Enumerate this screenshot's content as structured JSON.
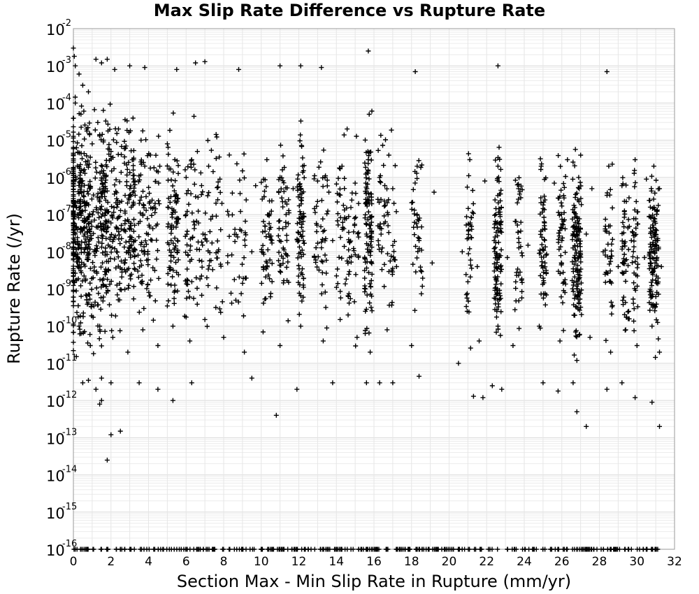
{
  "chart_data": {
    "type": "scatter",
    "title": "Max Slip Rate Difference vs Rupture Rate",
    "xlabel": "Section Max - Min Slip Rate in Rupture (mm/yr)",
    "ylabel": "Rupture Rate (/yr)",
    "x_scale": "linear",
    "y_scale": "log",
    "xlim": [
      0,
      32
    ],
    "ylim": [
      1e-16,
      0.01
    ],
    "x_ticks": [
      "0",
      "2",
      "4",
      "6",
      "8",
      "10",
      "12",
      "14",
      "16",
      "18",
      "20",
      "22",
      "24",
      "26",
      "28",
      "30",
      "32"
    ],
    "y_ticks": [
      {
        "base": "10",
        "exp": "-16"
      },
      {
        "base": "10",
        "exp": "-15"
      },
      {
        "base": "10",
        "exp": "-14"
      },
      {
        "base": "10",
        "exp": "-13"
      },
      {
        "base": "10",
        "exp": "-12"
      },
      {
        "base": "10",
        "exp": "-11"
      },
      {
        "base": "10",
        "exp": "-10"
      },
      {
        "base": "10",
        "exp": "-9"
      },
      {
        "base": "10",
        "exp": "-8"
      },
      {
        "base": "10",
        "exp": "-7"
      },
      {
        "base": "10",
        "exp": "-6"
      },
      {
        "base": "10",
        "exp": "-5"
      },
      {
        "base": "10",
        "exp": "-4"
      },
      {
        "base": "10",
        "exp": "-3"
      },
      {
        "base": "10",
        "exp": "-2"
      }
    ],
    "grid": true,
    "marker": "plus",
    "marker_color": "#000000",
    "series": [
      {
        "points": [
          [
            0.0,
            0.003
          ],
          [
            0.05,
            0.0018
          ],
          [
            0.1,
            0.001
          ],
          [
            0.3,
            0.0006
          ],
          [
            0.5,
            0.0003
          ],
          [
            0.8,
            0.0002
          ],
          [
            1.2,
            0.0015
          ],
          [
            1.5,
            0.0012
          ],
          [
            1.8,
            0.0015
          ],
          [
            2.2,
            0.0008
          ],
          [
            3.0,
            0.001
          ],
          [
            3.8,
            0.0009
          ],
          [
            5.5,
            0.0008
          ],
          [
            6.5,
            0.0012
          ],
          [
            7.0,
            0.0013
          ],
          [
            8.8,
            0.0008
          ],
          [
            11.0,
            0.001
          ],
          [
            12.1,
            0.001
          ],
          [
            13.2,
            0.0009
          ],
          [
            15.7,
            0.0025
          ],
          [
            18.2,
            0.0007
          ],
          [
            22.6,
            0.001
          ],
          [
            28.4,
            0.0007
          ],
          [
            0.1,
            0.0001
          ],
          [
            0.4,
            5e-05
          ],
          [
            0.7,
            2e-05
          ],
          [
            1.0,
            8e-06
          ],
          [
            1.3,
            3e-05
          ],
          [
            1.6,
            1e-05
          ],
          [
            2.0,
            5e-06
          ],
          [
            2.4,
            2e-05
          ],
          [
            2.8,
            7e-06
          ],
          [
            3.2,
            3e-06
          ],
          [
            3.6,
            1e-05
          ],
          [
            4.1,
            4e-06
          ],
          [
            4.6,
            2e-06
          ],
          [
            5.0,
            8e-06
          ],
          [
            5.4,
            3e-06
          ],
          [
            6.0,
            1e-06
          ],
          [
            6.6,
            5e-06
          ],
          [
            7.2,
            2e-06
          ],
          [
            7.8,
            9e-07
          ],
          [
            8.3,
            4e-06
          ],
          [
            9.0,
            1.5e-06
          ],
          [
            9.7,
            6e-07
          ],
          [
            10.3,
            3e-06
          ],
          [
            11.0,
            1e-06
          ],
          [
            11.7,
            5e-07
          ],
          [
            12.2,
            2e-06
          ],
          [
            13.0,
            8e-07
          ],
          [
            13.6,
            4e-07
          ],
          [
            14.3,
            2e-06
          ],
          [
            15.0,
            7e-07
          ],
          [
            15.7,
            3e-06
          ],
          [
            16.3,
            1e-06
          ],
          [
            17.0,
            5e-07
          ],
          [
            18.3,
            2e-06
          ],
          [
            19.2,
            4e-07
          ],
          [
            21.1,
            3e-06
          ],
          [
            21.9,
            8e-07
          ],
          [
            22.6,
            2e-06
          ],
          [
            23.7,
            5e-07
          ],
          [
            24.9,
            2e-06
          ],
          [
            25.6,
            7e-07
          ],
          [
            26.3,
            3e-06
          ],
          [
            26.9,
            1e-06
          ],
          [
            27.6,
            5e-07
          ],
          [
            28.5,
            2e-06
          ],
          [
            29.2,
            6e-07
          ],
          [
            29.9,
            3e-06
          ],
          [
            30.5,
            9e-07
          ],
          [
            30.9,
            2e-06
          ],
          [
            31.2,
            5e-07
          ],
          [
            0.2,
            1e-07
          ],
          [
            0.6,
            3e-08
          ],
          [
            1.1,
            1e-08
          ],
          [
            1.7,
            5e-08
          ],
          [
            2.3,
            1e-08
          ],
          [
            3.0,
            4e-08
          ],
          [
            3.8,
            1e-08
          ],
          [
            4.4,
            5e-08
          ],
          [
            5.2,
            2e-08
          ],
          [
            6.1,
            8e-09
          ],
          [
            6.9,
            3e-08
          ],
          [
            7.7,
            1e-08
          ],
          [
            8.6,
            4e-08
          ],
          [
            9.5,
            1e-08
          ],
          [
            10.4,
            3e-08
          ],
          [
            11.3,
            9e-09
          ],
          [
            12.0,
            2e-08
          ],
          [
            12.9,
            6e-09
          ],
          [
            13.8,
            2e-08
          ],
          [
            14.7,
            7e-09
          ],
          [
            15.6,
            3e-08
          ],
          [
            16.4,
            1e-08
          ],
          [
            17.2,
            4e-09
          ],
          [
            18.4,
            2e-08
          ],
          [
            19.1,
            5e-09
          ],
          [
            20.7,
            1e-08
          ],
          [
            21.5,
            4e-09
          ],
          [
            22.4,
            2e-08
          ],
          [
            23.1,
            7e-09
          ],
          [
            24.2,
            1.5e-08
          ],
          [
            25.1,
            5e-09
          ],
          [
            26.0,
            2e-08
          ],
          [
            26.7,
            8e-09
          ],
          [
            27.3,
            3e-08
          ],
          [
            28.2,
            1e-08
          ],
          [
            29.0,
            4e-09
          ],
          [
            29.7,
            2e-08
          ],
          [
            30.4,
            7e-09
          ],
          [
            31.0,
            1.5e-08
          ],
          [
            31.3,
            4e-09
          ],
          [
            0.3,
            1e-10
          ],
          [
            0.9,
            3e-11
          ],
          [
            1.4,
            1e-10
          ],
          [
            2.1,
            5e-11
          ],
          [
            2.9,
            2e-11
          ],
          [
            3.7,
            8e-11
          ],
          [
            4.5,
            3e-11
          ],
          [
            5.3,
            1e-10
          ],
          [
            6.2,
            4e-11
          ],
          [
            7.0,
            1.5e-10
          ],
          [
            8.0,
            5e-11
          ],
          [
            9.1,
            2e-11
          ],
          [
            10.1,
            7e-11
          ],
          [
            11.0,
            3e-11
          ],
          [
            12.1,
            1e-10
          ],
          [
            13.3,
            4e-11
          ],
          [
            14.2,
            1.5e-10
          ],
          [
            15.1,
            5e-11
          ],
          [
            15.8,
            2e-11
          ],
          [
            16.7,
            8e-11
          ],
          [
            18.0,
            3e-11
          ],
          [
            20.5,
            1e-11
          ],
          [
            21.6,
            4e-11
          ],
          [
            22.6,
            1e-10
          ],
          [
            23.4,
            3e-11
          ],
          [
            24.8,
            1e-10
          ],
          [
            25.9,
            4e-11
          ],
          [
            26.8,
            1.2e-11
          ],
          [
            27.5,
            5e-11
          ],
          [
            28.6,
            2e-11
          ],
          [
            29.4,
            8e-11
          ],
          [
            30.0,
            3e-11
          ],
          [
            30.8,
            1e-10
          ],
          [
            31.2,
            2e-11
          ],
          [
            0.5,
            3e-12
          ],
          [
            0.8,
            3.5e-12
          ],
          [
            1.2,
            2e-12
          ],
          [
            1.5,
            4e-12
          ],
          [
            2.0,
            3e-12
          ],
          [
            3.5,
            3e-12
          ],
          [
            4.5,
            2e-12
          ],
          [
            5.3,
            1e-12
          ],
          [
            6.3,
            3e-12
          ],
          [
            9.5,
            4e-12
          ],
          [
            10.8,
            4e-13
          ],
          [
            11.9,
            2e-12
          ],
          [
            13.8,
            3e-12
          ],
          [
            15.6,
            3e-12
          ],
          [
            16.3,
            3e-12
          ],
          [
            17.0,
            3e-12
          ],
          [
            18.4,
            4.5e-12
          ],
          [
            21.3,
            1.3e-12
          ],
          [
            21.8,
            1.2e-12
          ],
          [
            22.3,
            2.5e-12
          ],
          [
            22.8,
            2e-12
          ],
          [
            25.0,
            3e-12
          ],
          [
            25.8,
            1.8e-12
          ],
          [
            26.6,
            3e-12
          ],
          [
            26.8,
            5e-13
          ],
          [
            27.3,
            2e-13
          ],
          [
            28.4,
            2e-12
          ],
          [
            29.2,
            3e-12
          ],
          [
            29.9,
            1.2e-12
          ],
          [
            30.8,
            9e-13
          ],
          [
            31.2,
            2e-13
          ],
          [
            1.4,
            8e-13
          ],
          [
            1.5,
            1e-12
          ],
          [
            2.0,
            1.2e-13
          ],
          [
            2.5,
            1.5e-13
          ],
          [
            1.8,
            2.5e-14
          ]
        ],
        "columns": [
          {
            "x": 0.1,
            "spread": 0.8,
            "ymin": -11.5,
            "ymax": -3,
            "n": 260
          },
          {
            "x": 1.0,
            "spread": 0.9,
            "ymin": -11.3,
            "ymax": -3.3,
            "n": 200
          },
          {
            "x": 2.0,
            "spread": 0.6,
            "ymin": -11.2,
            "ymax": -3.5,
            "n": 150
          },
          {
            "x": 3.0,
            "spread": 0.3,
            "ymin": -11.0,
            "ymax": -3.5,
            "n": 110
          },
          {
            "x": 4.0,
            "spread": 0.6,
            "ymin": -11.0,
            "ymax": -3.7,
            "n": 100
          },
          {
            "x": 5.3,
            "spread": 0.3,
            "ymin": -11.0,
            "ymax": -3.8,
            "n": 90
          },
          {
            "x": 6.4,
            "spread": 0.5,
            "ymin": -11.0,
            "ymax": -3.8,
            "n": 70
          },
          {
            "x": 7.5,
            "spread": 0.5,
            "ymin": -11.0,
            "ymax": -4.0,
            "n": 50
          },
          {
            "x": 8.7,
            "spread": 0.5,
            "ymin": -11.0,
            "ymax": -4.0,
            "n": 40
          },
          {
            "x": 10.3,
            "spread": 0.3,
            "ymin": -10.8,
            "ymax": -4.2,
            "n": 55
          },
          {
            "x": 11.2,
            "spread": 0.3,
            "ymin": -10.8,
            "ymax": -4.2,
            "n": 55
          },
          {
            "x": 12.1,
            "spread": 0.2,
            "ymin": -11.0,
            "ymax": -3.5,
            "n": 80
          },
          {
            "x": 13.2,
            "spread": 0.4,
            "ymin": -10.8,
            "ymax": -4.0,
            "n": 50
          },
          {
            "x": 14.6,
            "spread": 0.6,
            "ymin": -11.0,
            "ymax": -4.0,
            "n": 80
          },
          {
            "x": 15.7,
            "spread": 0.2,
            "ymin": -11.2,
            "ymax": -3.5,
            "n": 110
          },
          {
            "x": 16.7,
            "spread": 0.5,
            "ymin": -10.8,
            "ymax": -4.0,
            "n": 60
          },
          {
            "x": 18.3,
            "spread": 0.3,
            "ymin": -10.5,
            "ymax": -4.0,
            "n": 40
          },
          {
            "x": 21.1,
            "spread": 0.2,
            "ymin": -11.0,
            "ymax": -4.5,
            "n": 40
          },
          {
            "x": 22.6,
            "spread": 0.2,
            "ymin": -11.2,
            "ymax": -4.2,
            "n": 110
          },
          {
            "x": 23.7,
            "spread": 0.2,
            "ymin": -10.8,
            "ymax": -4.5,
            "n": 40
          },
          {
            "x": 25.0,
            "spread": 0.2,
            "ymin": -11.0,
            "ymax": -4.5,
            "n": 60
          },
          {
            "x": 26.0,
            "spread": 0.2,
            "ymin": -11.0,
            "ymax": -4.8,
            "n": 50
          },
          {
            "x": 26.8,
            "spread": 0.25,
            "ymin": -11.5,
            "ymax": -4.8,
            "n": 140
          },
          {
            "x": 28.5,
            "spread": 0.2,
            "ymin": -11.0,
            "ymax": -5.0,
            "n": 40
          },
          {
            "x": 29.4,
            "spread": 0.2,
            "ymin": -11.0,
            "ymax": -5.0,
            "n": 50
          },
          {
            "x": 29.9,
            "spread": 0.15,
            "ymin": -11.0,
            "ymax": -5.0,
            "n": 40
          },
          {
            "x": 30.9,
            "spread": 0.25,
            "ymin": -11.3,
            "ymax": -4.8,
            "n": 130
          }
        ],
        "floor_points_y": 1e-16,
        "floor_points_count": 320
      }
    ]
  }
}
